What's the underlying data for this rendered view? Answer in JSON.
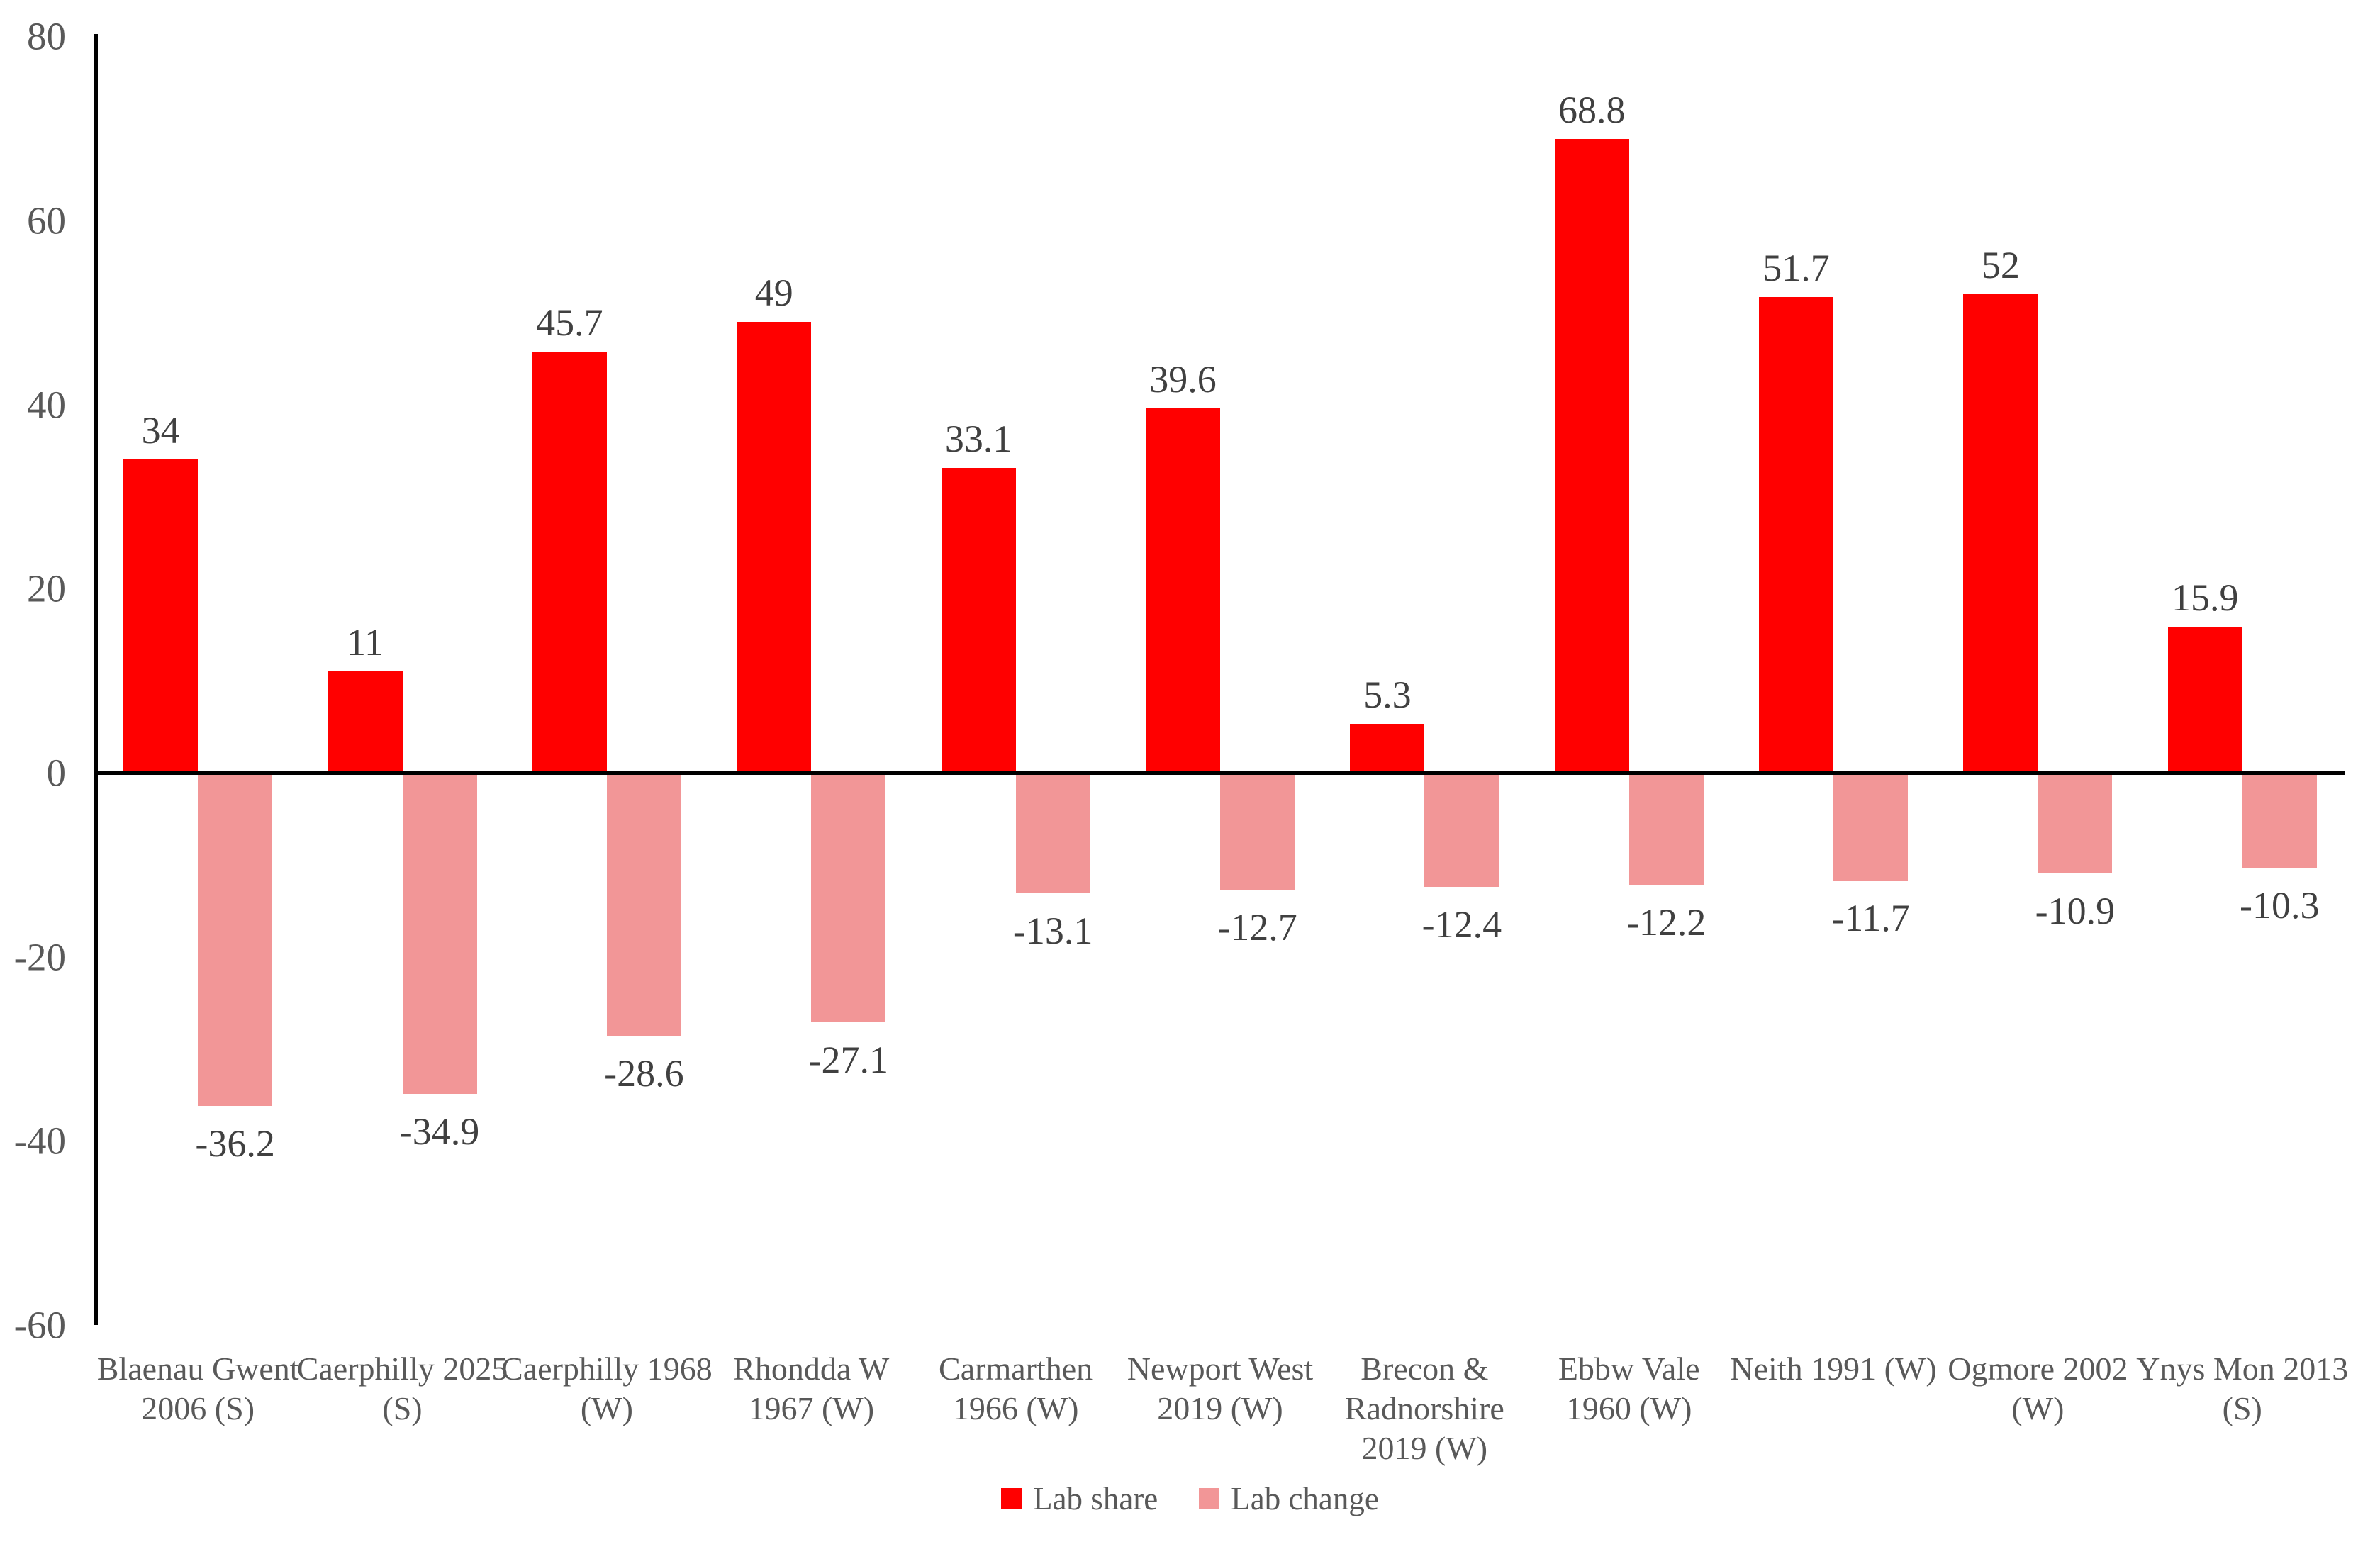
{
  "chart_data": {
    "type": "bar",
    "title": "",
    "xlabel": "",
    "ylabel": "",
    "ylim": [
      -60,
      80
    ],
    "yticks": [
      80,
      60,
      40,
      20,
      0,
      -20,
      -40,
      -60
    ],
    "grid": false,
    "legend_position": "bottom",
    "axis_color": "#000000",
    "tick_label_color": "#595959",
    "data_label_color": "#404040",
    "background_color": "#ffffff",
    "categories": [
      {
        "label": "Blaenau Gwent 2006 (S)",
        "lines": [
          "Blaenau Gwent",
          "2006 (S)"
        ]
      },
      {
        "label": "Caerphilly 2025 (S)",
        "lines": [
          "Caerphilly 2025",
          "(S)"
        ]
      },
      {
        "label": "Caerphilly 1968 (W)",
        "lines": [
          "Caerphilly 1968",
          "(W)"
        ]
      },
      {
        "label": "Rhondda W 1967 (W)",
        "lines": [
          "Rhondda W",
          "1967 (W)"
        ]
      },
      {
        "label": "Carmarthen 1966 (W)",
        "lines": [
          "Carmarthen",
          "1966 (W)"
        ]
      },
      {
        "label": "Newport West 2019 (W)",
        "lines": [
          "Newport West",
          "2019 (W)"
        ]
      },
      {
        "label": "Brecon & Radnorshire 2019 (W)",
        "lines": [
          "Brecon &",
          "Radnorshire",
          "2019 (W)"
        ]
      },
      {
        "label": "Ebbw Vale 1960 (W)",
        "lines": [
          "Ebbw Vale",
          "1960 (W)"
        ]
      },
      {
        "label": "Neith 1991 (W)",
        "lines": [
          "Neith 1991 (W)"
        ]
      },
      {
        "label": "Ogmore 2002 (W)",
        "lines": [
          "Ogmore 2002",
          "(W)"
        ]
      },
      {
        "label": "Ynys Mon 2013 (S)",
        "lines": [
          "Ynys Mon 2013",
          "(S)"
        ]
      }
    ],
    "series": [
      {
        "name": "Lab share",
        "color": "#FF0000",
        "values": [
          34,
          11,
          45.7,
          49,
          33.1,
          39.6,
          5.3,
          68.8,
          51.7,
          52,
          15.9
        ],
        "data_labels": [
          "34",
          "11",
          "45.7",
          "49",
          "33.1",
          "39.6",
          "5.3",
          "68.8",
          "51.7",
          "52",
          "15.9"
        ]
      },
      {
        "name": "Lab change",
        "color": "#F29697",
        "values": [
          -36.2,
          -34.9,
          -28.6,
          -27.1,
          -13.1,
          -12.7,
          -12.4,
          -12.2,
          -11.7,
          -10.9,
          -10.3
        ],
        "data_labels": [
          "-36.2",
          "-34.9",
          "-28.6",
          "-27.1",
          "-13.1",
          "-12.7",
          "-12.4",
          "-12.2",
          "-11.7",
          "-10.9",
          "-10.3"
        ]
      }
    ]
  }
}
